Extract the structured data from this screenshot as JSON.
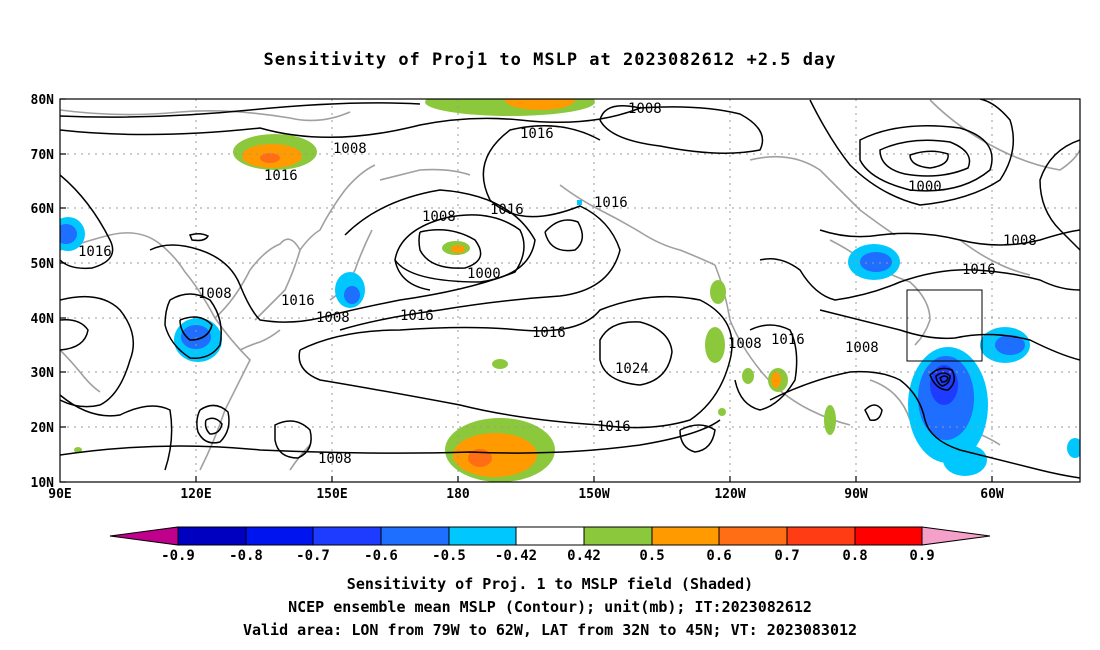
{
  "title": "Sensitivity of Proj1 to MSLP at 2023082612 +2.5 day",
  "map": {
    "lat_labels": [
      "80N",
      "70N",
      "60N",
      "50N",
      "40N",
      "30N",
      "20N",
      "10N"
    ],
    "lon_labels": [
      "90E",
      "120E",
      "150E",
      "180",
      "150W",
      "120W",
      "90W",
      "60W"
    ],
    "valid_box": {
      "lon_from": "79W",
      "lon_to": "62W",
      "lat_from": "32N",
      "lat_to": "45N"
    },
    "contour_labels": [
      {
        "id": "c1",
        "text": "1008"
      },
      {
        "id": "c2",
        "text": "1016"
      },
      {
        "id": "c3",
        "text": "1008"
      },
      {
        "id": "c4",
        "text": "1016"
      },
      {
        "id": "c5",
        "text": "1016"
      },
      {
        "id": "c6",
        "text": "1016"
      },
      {
        "id": "c7",
        "text": "1008"
      },
      {
        "id": "c8",
        "text": "1000"
      },
      {
        "id": "c9",
        "text": "1016"
      },
      {
        "id": "c10",
        "text": "1008"
      },
      {
        "id": "c11",
        "text": "1016"
      },
      {
        "id": "c12",
        "text": "1016"
      },
      {
        "id": "c13",
        "text": "1008"
      },
      {
        "id": "c14",
        "text": "1016"
      },
      {
        "id": "c15",
        "text": "1016"
      },
      {
        "id": "c16",
        "text": "1024"
      },
      {
        "id": "c17",
        "text": "1008"
      },
      {
        "id": "c18",
        "text": "1016"
      },
      {
        "id": "c19",
        "text": "1008"
      },
      {
        "id": "c20",
        "text": "1016"
      },
      {
        "id": "c21",
        "text": "1008"
      },
      {
        "id": "c22",
        "text": "1000"
      },
      {
        "id": "c23",
        "text": "1008"
      },
      {
        "id": "c24",
        "text": "1016"
      }
    ]
  },
  "colorbar": {
    "labels": [
      "-0.9",
      "-0.8",
      "-0.7",
      "-0.6",
      "-0.5",
      "-0.42",
      "0.42",
      "0.5",
      "0.6",
      "0.7",
      "0.8",
      "0.9"
    ],
    "colors": {
      "neg_end": "#c0008c",
      "c1": "#0000c0",
      "c2": "#0014f0",
      "c3": "#1e3cff",
      "c4": "#1e6eff",
      "c5": "#1ea0ff",
      "c6": "#00c8ff",
      "white": "#ffffff",
      "g": "#8cc83c",
      "o1": "#ff9b00",
      "o2": "#ff6e14",
      "o3": "#ff3c14",
      "r": "#ff0000",
      "pos_end": "#f5a0c8"
    }
  },
  "captions": {
    "line1": "Sensitivity of Proj. 1 to MSLP field (Shaded)",
    "line2": "NCEP ensemble mean MSLP (Contour); unit(mb); IT:2023082612",
    "line3": "Valid area: LON from 79W to 62W, LAT from 32N to 45N; VT: 2023083012"
  }
}
